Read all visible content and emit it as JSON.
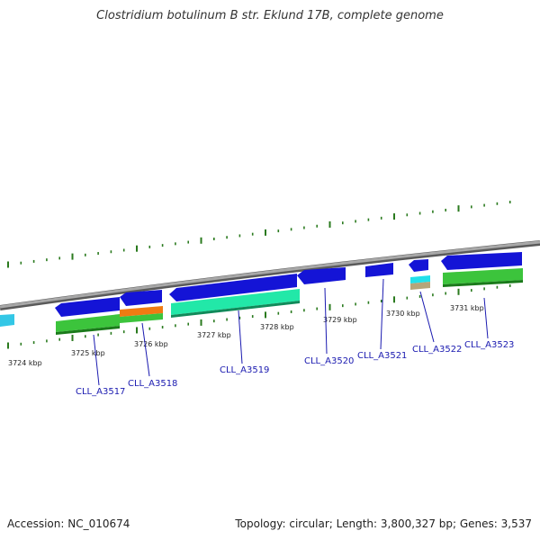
{
  "title": "Clostridium botulinum B str. Eklund 17B, complete genome",
  "footer": {
    "accession": "Accession: NC_010674",
    "summary": "Topology: circular; Length: 3,800,327 bp; Genes: 3,537"
  },
  "colors": {
    "backbone": "#8c8c8c",
    "tick": "#2a7a1e",
    "cds_forward": "#1414d6",
    "cds_reverse_light": "#33c7e6",
    "green_track": "#3cc43c",
    "orange_track": "#f07b12",
    "teal_track": "#22e8a8",
    "cyan_track": "#22e0ea",
    "tan_track": "#b5a57a",
    "gene_label": "#1a1ab0"
  },
  "kbp_markers": [
    "3724 kbp",
    "3725 kbp",
    "3726 kbp",
    "3727 kbp",
    "3728 kbp",
    "3729 kbp",
    "3730 kbp",
    "3731 kbp"
  ],
  "gene_labels": [
    "CLL_A3517",
    "CLL_A3518",
    "CLL_A3519",
    "CLL_A3520",
    "CLL_A3521",
    "CLL_A3522",
    "CLL_A3523"
  ]
}
